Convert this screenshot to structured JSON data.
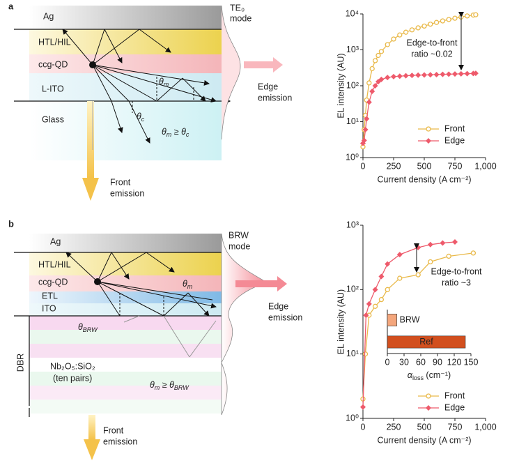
{
  "diagram_a": {
    "panel_label": "a",
    "layers": [
      "Ag",
      "HTL/HIL",
      "ccg-QD",
      "L-ITO",
      "Glass"
    ],
    "mode_label": [
      "TE₀",
      "mode"
    ],
    "theta_m": {
      "symbol": "θ",
      "sub": "m"
    },
    "theta_c": {
      "symbol": "θ",
      "sub": "c"
    },
    "condition": {
      "left": "θ",
      "left_sub": "m",
      "relation": " ≥ ",
      "right": "θ",
      "right_sub": "c"
    },
    "edge_emission": [
      "Edge",
      "emission"
    ],
    "front_emission": [
      "Front",
      "emission"
    ]
  },
  "diagram_b": {
    "panel_label": "b",
    "layers": [
      "Ag",
      "HTL/HIL",
      "ccg-QD",
      "ETL",
      "ITO"
    ],
    "mode_label": [
      "BRW",
      "mode"
    ],
    "theta_m": {
      "symbol": "θ",
      "sub": "m"
    },
    "theta_brw": {
      "symbol": "θ",
      "sub": "BRW"
    },
    "dbr": "DBR",
    "dbr_material": [
      "Nb₂O₅:SiO₂",
      "(ten pairs)"
    ],
    "condition": {
      "left": "θ",
      "left_sub": "m",
      "relation": " ≥ ",
      "right": "θ",
      "right_sub": "BRW"
    },
    "edge_emission": [
      "Edge",
      "emission"
    ],
    "front_emission": [
      "Front",
      "emission"
    ]
  },
  "chart_data": [
    {
      "type": "line",
      "xlabel": "Current density (A cm⁻²)",
      "ylabel": "EL intensity (AU)",
      "yscale": "log",
      "xlim": [
        0,
        1000
      ],
      "ylim": [
        1,
        10000
      ],
      "xticks": [
        0,
        250,
        500,
        750,
        {
          "value": 1000,
          "label": "1,000"
        }
      ],
      "yticks": [
        {
          "value": 1,
          "label": "10⁰"
        },
        {
          "value": 10,
          "label": "10¹"
        },
        {
          "value": 100,
          "label": "10²"
        },
        {
          "value": 1000,
          "label": "10³"
        },
        {
          "value": 10000,
          "label": "10⁴"
        }
      ],
      "legend": "lower right",
      "annotation": [
        "Edge-to-front",
        "ratio ~0.02"
      ],
      "series": [
        {
          "name": "Front",
          "color": "#e9b949",
          "marker": "circle",
          "x": [
            0,
            10,
            20,
            30,
            50,
            75,
            100,
            125,
            150,
            200,
            250,
            300,
            350,
            400,
            450,
            500,
            550,
            600,
            650,
            700,
            750,
            800,
            850,
            900,
            920
          ],
          "values": [
            2,
            6,
            15,
            40,
            120,
            300,
            500,
            700,
            900,
            1400,
            2000,
            2600,
            3100,
            3600,
            4100,
            4600,
            5200,
            5800,
            6400,
            7000,
            7600,
            8200,
            8800,
            9300,
            9500
          ]
        },
        {
          "name": "Edge",
          "color": "#ee5a6b",
          "marker": "diamond",
          "x": [
            0,
            10,
            20,
            30,
            50,
            75,
            100,
            125,
            150,
            200,
            250,
            300,
            350,
            400,
            450,
            500,
            550,
            600,
            650,
            700,
            750,
            800,
            850,
            900,
            920
          ],
          "values": [
            2.5,
            3,
            6,
            12,
            35,
            70,
            100,
            130,
            150,
            170,
            180,
            185,
            190,
            195,
            198,
            200,
            202,
            205,
            208,
            210,
            213,
            215,
            218,
            220,
            222
          ]
        }
      ]
    },
    {
      "type": "line",
      "xlabel": "Current density (A cm⁻²)",
      "ylabel": "EL intensity (AU)",
      "yscale": "log",
      "xlim": [
        0,
        1000
      ],
      "ylim": [
        1,
        1000
      ],
      "xticks": [
        0,
        250,
        500,
        750,
        {
          "value": 1000,
          "label": "1,000"
        }
      ],
      "yticks": [
        {
          "value": 1,
          "label": "10⁰"
        },
        {
          "value": 10,
          "label": "10¹"
        },
        {
          "value": 100,
          "label": "10²"
        },
        {
          "value": 1000,
          "label": "10³"
        }
      ],
      "legend": "lower right",
      "annotation": [
        "Edge-to-front",
        "ratio ~3"
      ],
      "series": [
        {
          "name": "Front",
          "color": "#e9b949",
          "marker": "circle",
          "x": [
            0,
            20,
            50,
            100,
            150,
            200,
            300,
            450,
            550,
            700,
            900
          ],
          "values": [
            2,
            10,
            40,
            55,
            70,
            100,
            150,
            170,
            270,
            330,
            370
          ]
        },
        {
          "name": "Edge",
          "color": "#ee5a6b",
          "marker": "diamond",
          "x": [
            0,
            25,
            50,
            100,
            150,
            200,
            300,
            450,
            550,
            650,
            750
          ],
          "values": [
            1.5,
            40,
            60,
            100,
            160,
            250,
            350,
            450,
            500,
            530,
            550
          ]
        }
      ]
    },
    {
      "type": "bar",
      "orientation": "horizontal",
      "categories": [
        "BRW",
        "Ref"
      ],
      "values": [
        17,
        140
      ],
      "colors": [
        "#f4a67c",
        "#d24f1e"
      ],
      "xlim": [
        0,
        150
      ],
      "xticks": [
        0,
        30,
        60,
        90,
        120,
        150
      ],
      "xlabel": {
        "symbol": "α",
        "sub": "loss",
        "unit": " (cm⁻¹)"
      }
    }
  ]
}
